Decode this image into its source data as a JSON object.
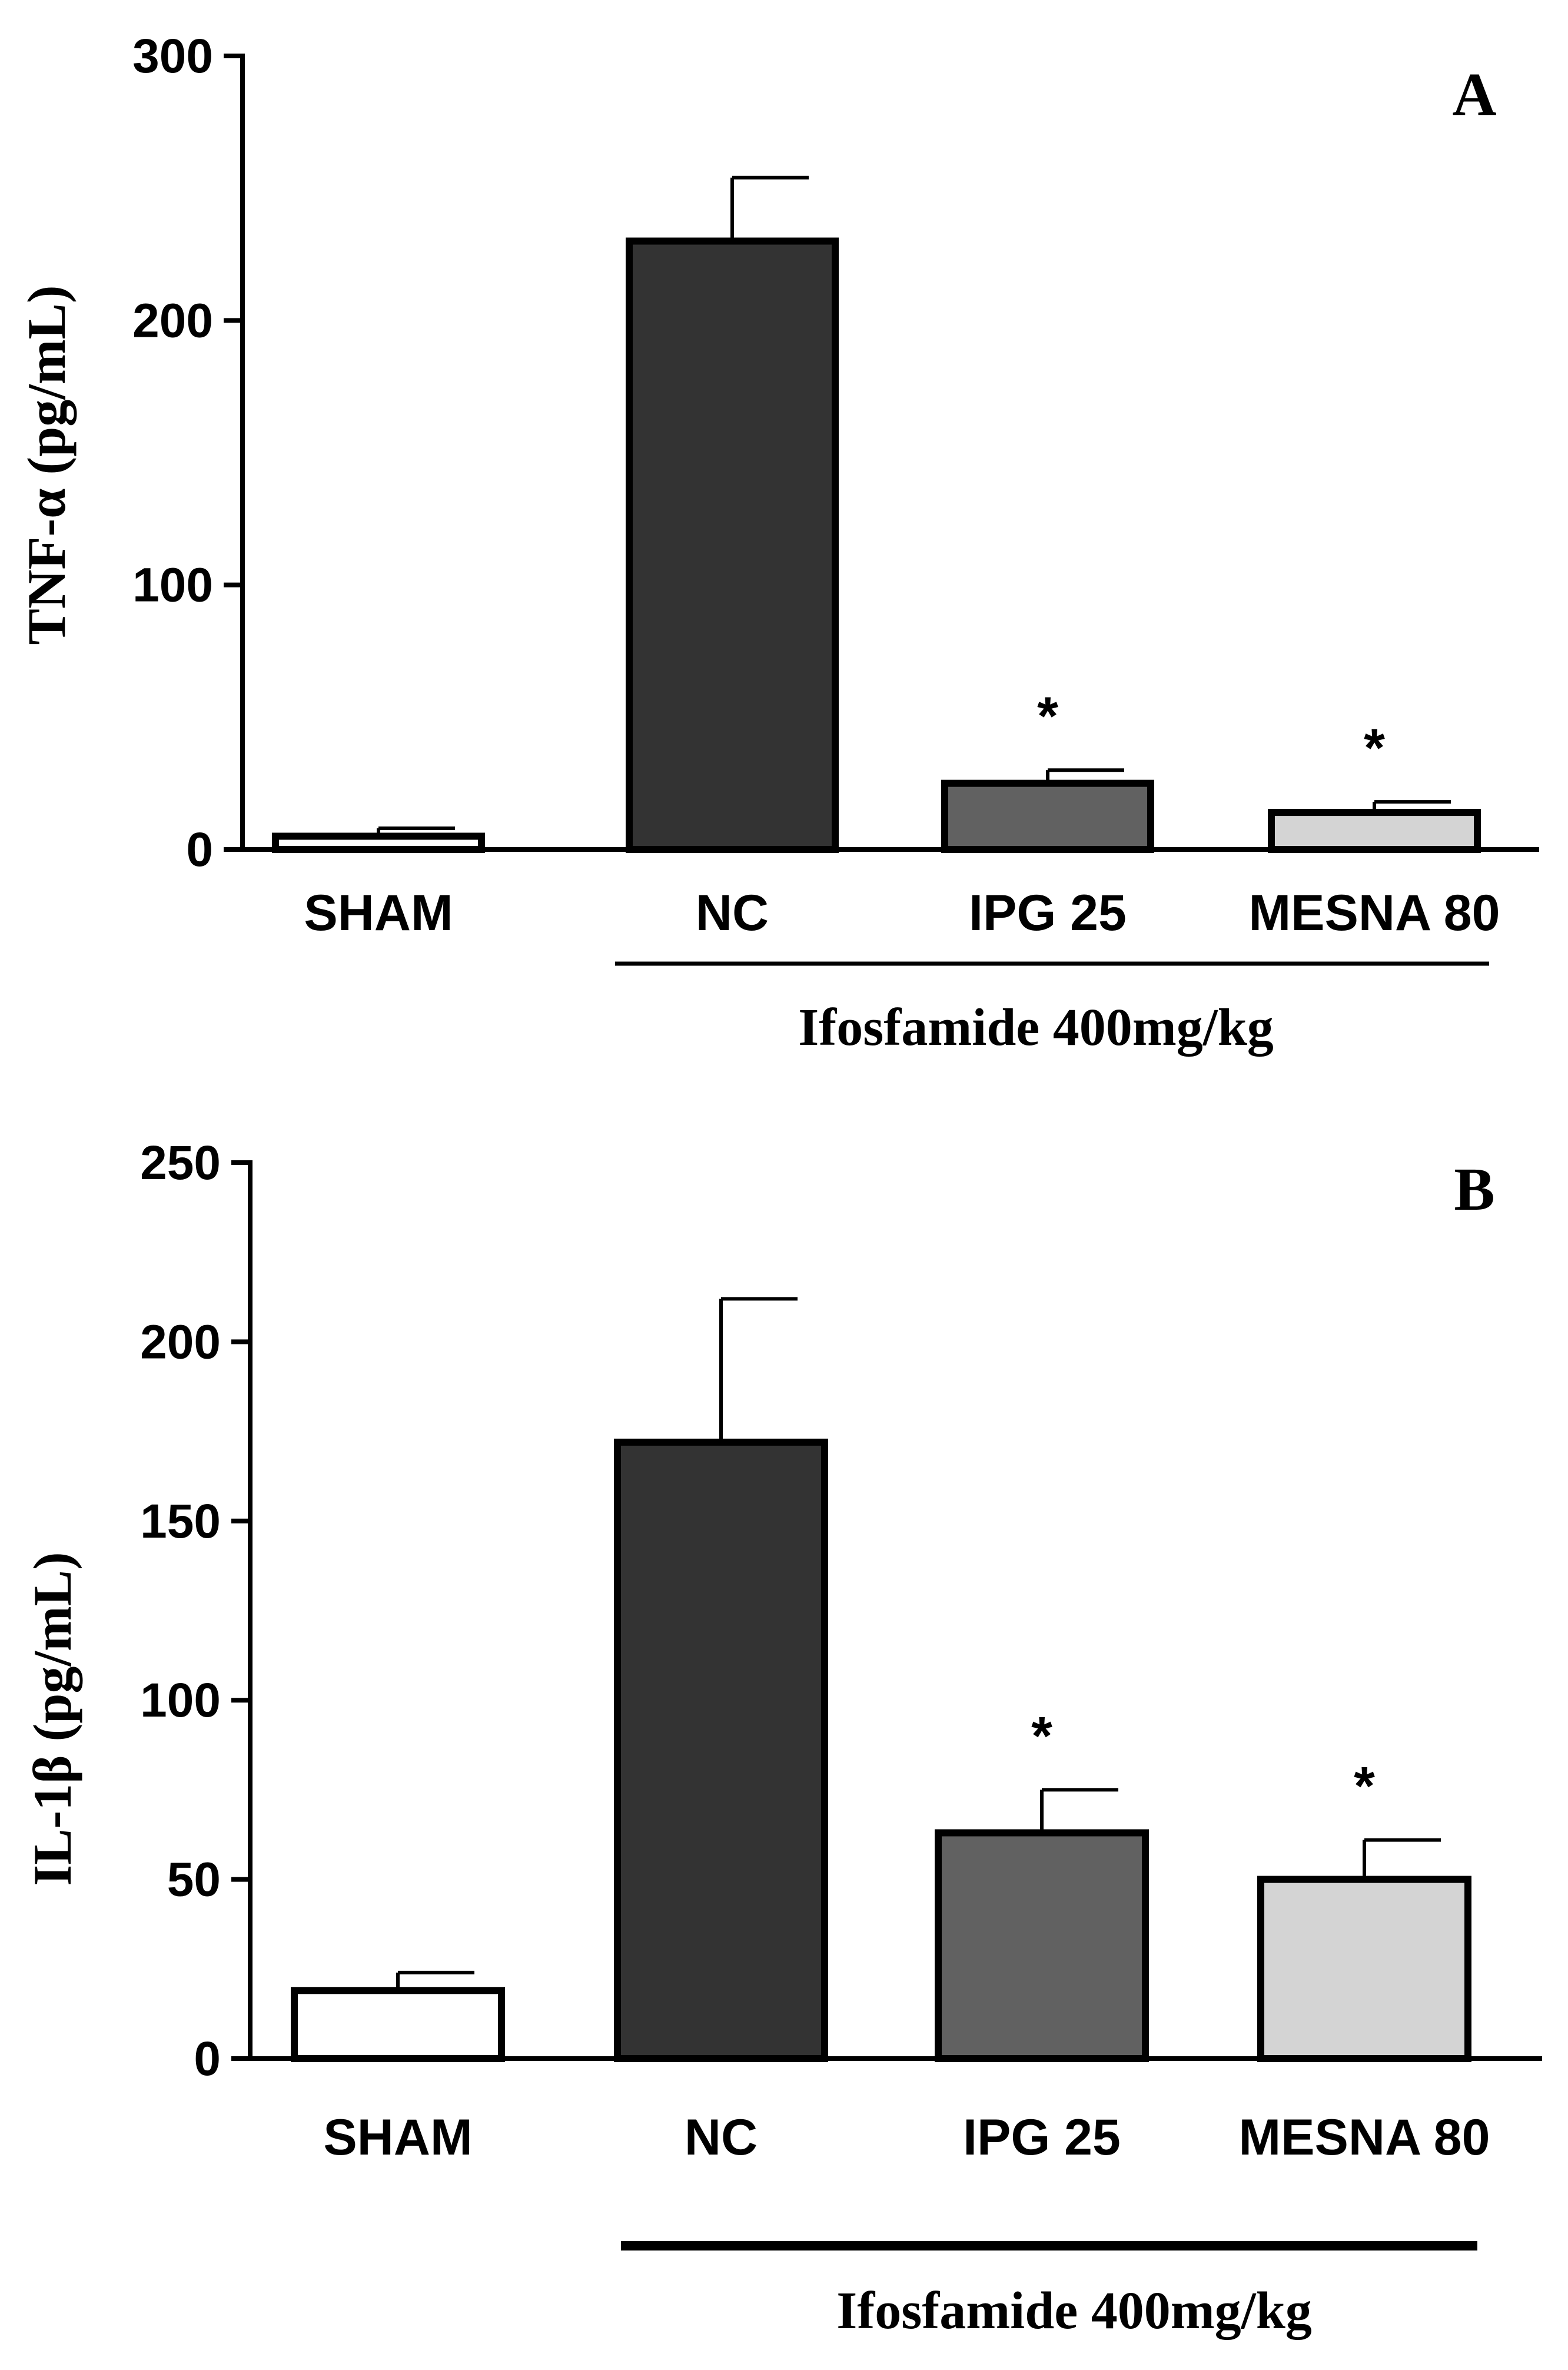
{
  "chart_data": [
    {
      "type": "bar",
      "panel_label": "A",
      "ylabel": "TNF-α (pg/mL)",
      "ylim": [
        0,
        300
      ],
      "yticks": [
        "0",
        "100",
        "200",
        "300"
      ],
      "categories": [
        "SHAM",
        "NC",
        "IPG 25",
        "MESNA 80"
      ],
      "values": [
        5,
        230,
        25,
        14
      ],
      "errors": [
        3,
        24,
        5,
        4
      ],
      "colors": [
        "#ffffff",
        "#333333",
        "#616161",
        "#d4d4d4"
      ],
      "significance": [
        "",
        "",
        "*",
        "*"
      ],
      "group_label": "Ifosfamide 400mg/kg"
    },
    {
      "type": "bar",
      "panel_label": "B",
      "ylabel": "IL-1β (pg/mL)",
      "ylim": [
        0,
        250
      ],
      "yticks": [
        "0",
        "50",
        "100",
        "150",
        "200",
        "250"
      ],
      "categories": [
        "SHAM",
        "NC",
        "IPG 25",
        "MESNA 80"
      ],
      "values": [
        19,
        172,
        63,
        50
      ],
      "errors": [
        5,
        40,
        12,
        11
      ],
      "colors": [
        "#ffffff",
        "#333333",
        "#616161",
        "#d4d4d4"
      ],
      "significance": [
        "",
        "",
        "*",
        "*"
      ],
      "group_label": "Ifosfamide 400mg/kg"
    }
  ]
}
